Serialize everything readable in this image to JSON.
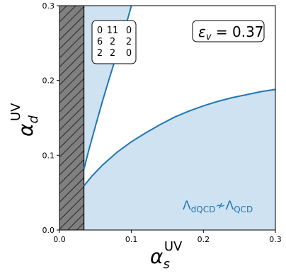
{
  "chart_data": {
    "type": "area",
    "xlim": [
      0.0,
      0.3
    ],
    "ylim": [
      0.0,
      0.3
    ],
    "x_ticks": [
      "0.0",
      "0.1",
      "0.2",
      "0.3"
    ],
    "y_ticks": [
      "0.0",
      "0.1",
      "0.2",
      "0.3"
    ],
    "xlabel": {
      "base": "α",
      "sub": "s",
      "sup": "UV"
    },
    "ylabel": {
      "base": "α",
      "sub": "d",
      "sup": "UV"
    },
    "hatched_region": {
      "x_from": 0.0,
      "x_to": 0.034,
      "color": "#808080"
    },
    "fill_color": "#cfe2f1",
    "line_color": "#1f77b4",
    "series": [
      {
        "x": [
          0.034,
          0.045,
          0.06,
          0.08,
          0.1,
          0.12,
          0.14,
          0.16,
          0.18,
          0.2,
          0.22,
          0.24,
          0.26,
          0.28,
          0.3
        ],
        "y": [
          0.059,
          0.072,
          0.087,
          0.104,
          0.118,
          0.13,
          0.141,
          0.151,
          0.159,
          0.166,
          0.172,
          0.177,
          0.181,
          0.185,
          0.188
        ]
      },
      {
        "x": [
          0.034,
          0.04,
          0.05,
          0.06,
          0.07,
          0.08,
          0.09,
          0.1
        ],
        "y": [
          0.081,
          0.104,
          0.139,
          0.173,
          0.205,
          0.236,
          0.266,
          0.3
        ]
      }
    ],
    "epsilon_label": {
      "prefix": "ε",
      "sub": "v",
      "value": " = 0.37"
    },
    "matrix_rows": [
      [
        "0",
        "11",
        "0"
      ],
      [
        "6",
        "2",
        "2"
      ],
      [
        "2",
        "2",
        "0"
      ]
    ],
    "region_label": {
      "left": "Λ",
      "left_sub": "dQCD",
      "relation": "≁",
      "right": "Λ",
      "right_sub": "QCD"
    }
  }
}
